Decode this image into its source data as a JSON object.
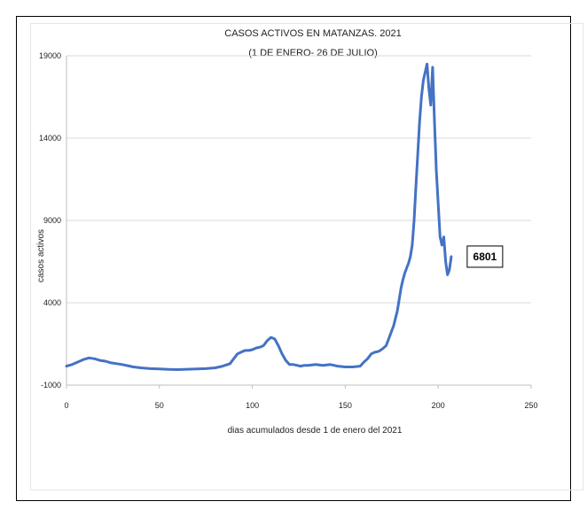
{
  "chart_data": {
    "type": "line",
    "title": "CASOS ACTIVOS EN MATANZAS. 2021",
    "subtitle": "(1 DE ENERO- 26 DE JULIO)",
    "xlabel": "dias acumulados desde 1  de enero del 2021",
    "ylabel": "casos activos",
    "xlim": [
      0,
      250
    ],
    "ylim": [
      -1000,
      19000
    ],
    "xticks": [
      "0",
      "50",
      "100",
      "150",
      "200",
      "250"
    ],
    "yticks": [
      "19000",
      "14000",
      "9000",
      "4000",
      "-1000"
    ],
    "ytick_values": [
      19000,
      14000,
      9000,
      4000,
      -1000
    ],
    "xtick_values": [
      0,
      50,
      100,
      150,
      200,
      250
    ],
    "grid": true,
    "annotation": {
      "text": "6801",
      "x": 207,
      "y": 6801
    },
    "color": "#4472c4",
    "series": [
      {
        "x": [
          0,
          3,
          6,
          9,
          12,
          15,
          18,
          21,
          24,
          27,
          30,
          33,
          36,
          40,
          45,
          50,
          55,
          60,
          65,
          70,
          75,
          80,
          84,
          88,
          90,
          92,
          94,
          96,
          98,
          100,
          102,
          104,
          106,
          108,
          110,
          112,
          114,
          116,
          118,
          120,
          122,
          124,
          126,
          128,
          130,
          134,
          138,
          142,
          146,
          150,
          154,
          158,
          160,
          162,
          164,
          166,
          168,
          170,
          172,
          174,
          176,
          178,
          179,
          180,
          181,
          182,
          183,
          184,
          185,
          186,
          187,
          188,
          189,
          190,
          191,
          192,
          193,
          194,
          195,
          196,
          197,
          198,
          199,
          200,
          201,
          202,
          203,
          204,
          205,
          206,
          207
        ],
        "y": [
          150,
          250,
          400,
          550,
          650,
          600,
          500,
          450,
          350,
          300,
          250,
          180,
          100,
          50,
          0,
          -20,
          -50,
          -60,
          -40,
          -20,
          0,
          50,
          150,
          300,
          600,
          900,
          1000,
          1100,
          1100,
          1150,
          1250,
          1300,
          1400,
          1700,
          1900,
          1800,
          1400,
          900,
          500,
          250,
          250,
          200,
          150,
          200,
          200,
          250,
          200,
          250,
          150,
          100,
          100,
          150,
          400,
          600,
          900,
          1000,
          1050,
          1200,
          1400,
          2000,
          2600,
          3500,
          4200,
          4900,
          5400,
          5800,
          6100,
          6400,
          6800,
          7500,
          9000,
          11000,
          13000,
          15000,
          16500,
          17500,
          18000,
          18500,
          17000,
          16000,
          18300,
          15000,
          12000,
          10000,
          8000,
          7500,
          8000,
          6500,
          5700,
          6000,
          6801
        ]
      }
    ]
  }
}
